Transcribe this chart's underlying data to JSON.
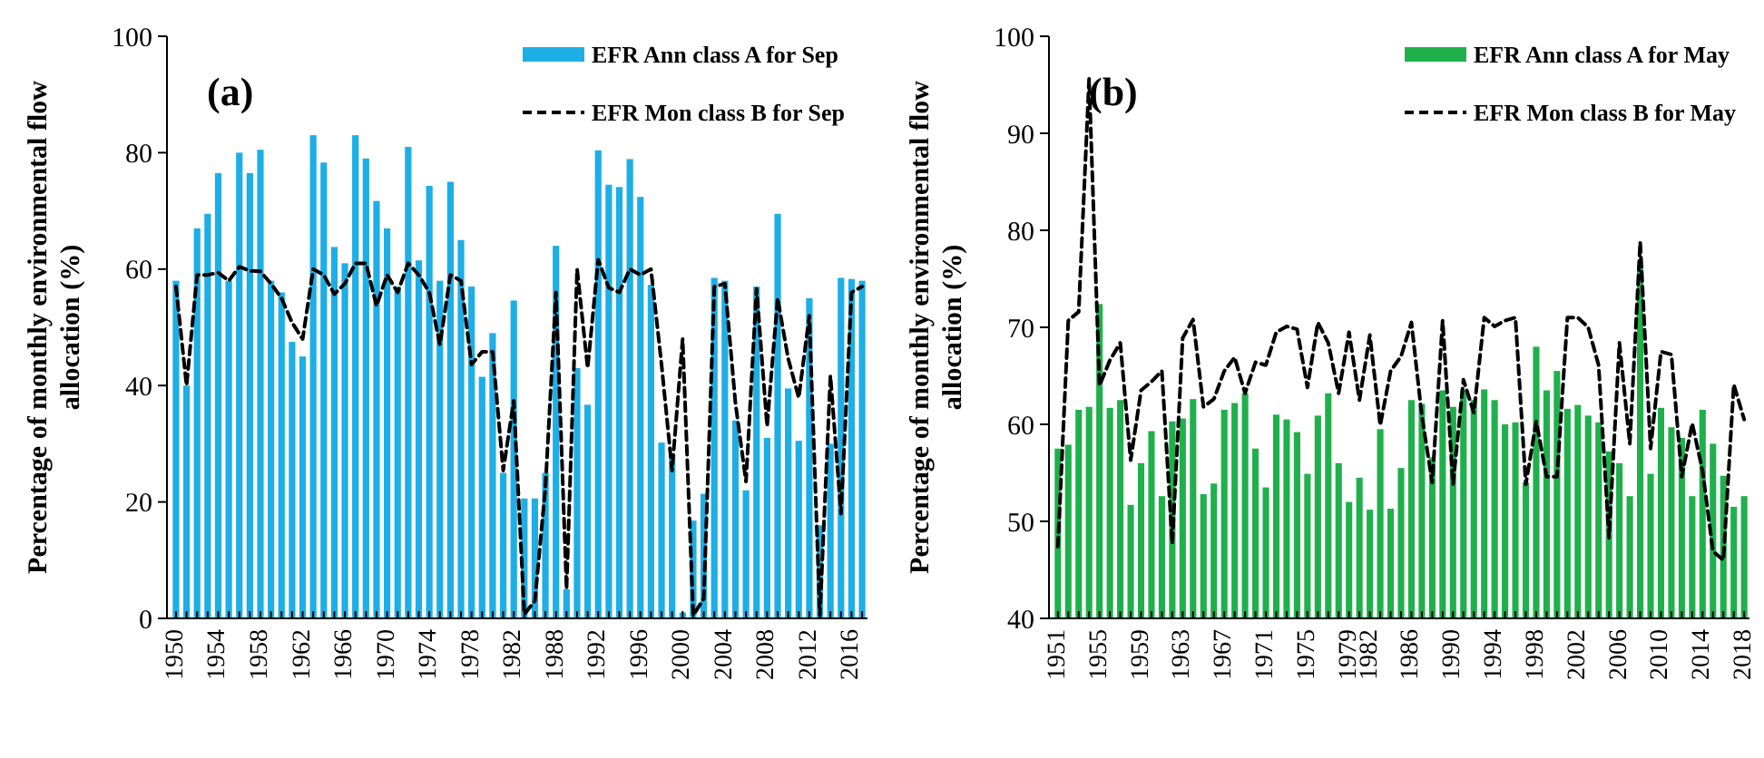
{
  "chart_data": [
    {
      "type": "bar",
      "ylabel": "Percentage of monthly environmental flow allocation (%)",
      "annotations": [
        "(a)"
      ],
      "legend": "top right",
      "grid": false,
      "categories": [
        "1950",
        null,
        null,
        null,
        "1954",
        null,
        null,
        null,
        "1958",
        null,
        null,
        null,
        "1962",
        null,
        null,
        null,
        "1966",
        null,
        null,
        null,
        "1970",
        null,
        null,
        null,
        "1974",
        null,
        null,
        null,
        "1978",
        null,
        null,
        null,
        "1982",
        null,
        null,
        null,
        "1988",
        null,
        null,
        null,
        "1992",
        null,
        null,
        null,
        "1996",
        null,
        null,
        null,
        "2000",
        null,
        null,
        null,
        "2004",
        null,
        null,
        null,
        "2008",
        null,
        null,
        null,
        "2012",
        null,
        null,
        null,
        "2016",
        null
      ],
      "ylim": [
        0,
        100
      ],
      "yticks": [
        0,
        20,
        40,
        60,
        80,
        100
      ],
      "series": [
        {
          "name": "EFR Ann class A for Sep",
          "color": "#1eaee6",
          "values": [
            58,
            40,
            67,
            69.5,
            76.5,
            58,
            80,
            76.5,
            80.5,
            58,
            56,
            47.5,
            45,
            83,
            78.3,
            63.8,
            61,
            83,
            79,
            71.7,
            67,
            57,
            81,
            61.5,
            74.3,
            58,
            75,
            65,
            57,
            41.5,
            49,
            25,
            54.6,
            20.6,
            20.6,
            25,
            64,
            5,
            43,
            36.7,
            80.4,
            74.5,
            74.1,
            78.9,
            72.4,
            57.3,
            30.2,
            28,
            1,
            16.8,
            21.4,
            58.5,
            58,
            34,
            22,
            57,
            31,
            69.5,
            39.5,
            30.5,
            55,
            16,
            30,
            58.5,
            58.3,
            58
          ]
        },
        {
          "name": "EFR Mon class B for Sep",
          "type": "line",
          "color": "#000000",
          "line_style": "dashed",
          "values": [
            57,
            40,
            59,
            59,
            59.4,
            58,
            60.4,
            59.7,
            59.6,
            57.5,
            55,
            50.8,
            48,
            60,
            59,
            55.7,
            57.5,
            61,
            61,
            53.7,
            59,
            56,
            61,
            59,
            56,
            47,
            59,
            58,
            43.6,
            45.8,
            45.8,
            25.4,
            37.4,
            0.7,
            3,
            22.5,
            56,
            5,
            60,
            43,
            61.6,
            56.8,
            56,
            60,
            59,
            60,
            43.6,
            25.4,
            48,
            0.5,
            3.4,
            57,
            57.5,
            37,
            23.5,
            56.6,
            33,
            55,
            44.6,
            37.9,
            52,
            0.5,
            41.7,
            18,
            56,
            57
          ]
        }
      ]
    },
    {
      "type": "bar",
      "ylabel": "Percentage of monthly environmental flow allocation (%)",
      "annotations": [
        "(b)"
      ],
      "legend": "top right",
      "grid": false,
      "categories": [
        "1951",
        null,
        null,
        null,
        "1955",
        null,
        null,
        null,
        "1959",
        null,
        null,
        null,
        "1963",
        null,
        null,
        null,
        "1967",
        null,
        null,
        null,
        "1971",
        null,
        null,
        null,
        "1975",
        null,
        null,
        null,
        "1979",
        null,
        "1982",
        null,
        null,
        null,
        "1986",
        null,
        null,
        null,
        "1990",
        null,
        null,
        null,
        "1994",
        null,
        null,
        null,
        "1998",
        null,
        null,
        null,
        "2002",
        null,
        null,
        null,
        "2006",
        null,
        null,
        null,
        "2010",
        null,
        null,
        null,
        "2014",
        null,
        null,
        null,
        "2018"
      ],
      "ylim": [
        40,
        100
      ],
      "yticks": [
        40,
        50,
        60,
        70,
        80,
        90,
        100
      ],
      "series": [
        {
          "name": "EFR Ann class A for May",
          "color": "#1fb04c",
          "values": [
            57.5,
            57.9,
            61.5,
            61.8,
            72.4,
            61.7,
            62.5,
            51.7,
            56,
            59.3,
            52.6,
            60.3,
            60.6,
            62.6,
            52.8,
            53.9,
            61.5,
            62.2,
            63.2,
            57.5,
            53.5,
            61,
            60.5,
            59.2,
            54.9,
            60.9,
            63.2,
            56,
            52,
            54.5,
            51.2,
            59.5,
            51.3,
            55.5,
            62.5,
            62.1,
            56.6,
            63.5,
            61.8,
            63.5,
            62.5,
            63.6,
            62.5,
            60,
            60.2,
            54,
            68,
            63.5,
            65.5,
            61.6,
            62,
            60.9,
            60.2,
            57.2,
            56,
            52.6,
            76.4,
            54.9,
            61.7,
            59.7,
            58.6,
            52.6,
            61.5,
            58,
            54.7,
            51.5,
            52.6
          ]
        },
        {
          "name": "EFR Mon class B for May",
          "type": "line",
          "color": "#000000",
          "line_style": "dashed",
          "values": [
            47.4,
            70.7,
            71.6,
            95.6,
            64,
            66.6,
            68.4,
            56.3,
            63.5,
            64.4,
            65.5,
            47.7,
            68.9,
            70.8,
            61.8,
            62.6,
            65.5,
            66.9,
            63.2,
            66.4,
            66.1,
            69.5,
            70.1,
            69.8,
            63.8,
            70.5,
            68.4,
            63.2,
            69.5,
            62.5,
            69.2,
            59.9,
            65.5,
            67,
            70.5,
            60.9,
            54,
            70.7,
            53.8,
            64.6,
            61.2,
            71,
            70.1,
            70.7,
            71,
            53.8,
            60.3,
            54.6,
            54.6,
            71,
            71,
            70,
            66.1,
            48.3,
            68.4,
            58,
            78.8,
            57.5,
            67.5,
            67.2,
            54.6,
            60.1,
            55.2,
            46.9,
            46,
            64.1,
            60.5
          ]
        }
      ]
    }
  ]
}
